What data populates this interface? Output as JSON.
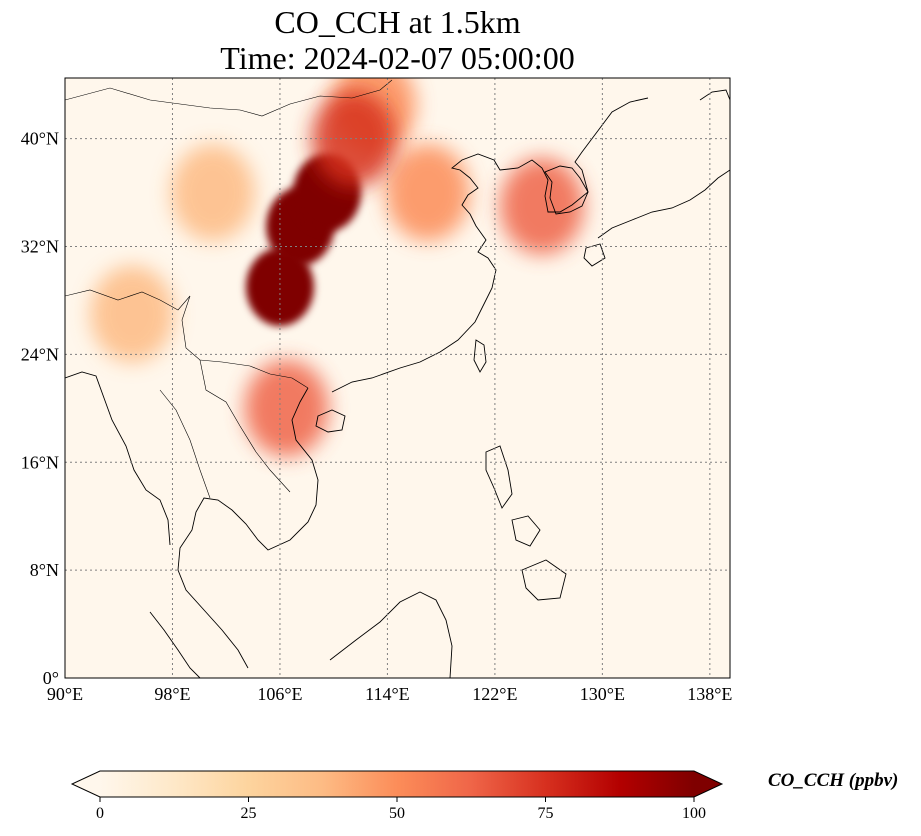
{
  "figure": {
    "title_line1": "CO_CCH at 1.5km",
    "title_line2": "Time: 2024-02-07 05:00:00"
  },
  "map": {
    "projection": "PlateCarree",
    "lon_range": [
      90,
      139.5
    ],
    "lat_range": [
      0,
      44.5
    ],
    "gridlines": "dotted gray",
    "lon_ticks": [
      {
        "value": 90,
        "label": "90°E"
      },
      {
        "value": 98,
        "label": "98°E"
      },
      {
        "value": 106,
        "label": "106°E"
      },
      {
        "value": 114,
        "label": "114°E"
      },
      {
        "value": 122,
        "label": "122°E"
      },
      {
        "value": 130,
        "label": "130°E"
      },
      {
        "value": 138,
        "label": "138°E"
      }
    ],
    "lat_ticks": [
      {
        "value": 0,
        "label": "0°"
      },
      {
        "value": 8,
        "label": "8°N"
      },
      {
        "value": 16,
        "label": "16°N"
      },
      {
        "value": 24,
        "label": "24°N"
      },
      {
        "value": 32,
        "label": "32°N"
      },
      {
        "value": 40,
        "label": "40°N"
      }
    ],
    "field_features": [
      {
        "lon": 107.5,
        "lat": 33.5,
        "value": 100
      },
      {
        "lon": 106.0,
        "lat": 29.0,
        "value": 100
      },
      {
        "lon": 109.5,
        "lat": 36.0,
        "value": 100
      },
      {
        "lon": 113.0,
        "lat": 42.5,
        "value": 55
      },
      {
        "lon": 117.0,
        "lat": 36.0,
        "value": 55
      },
      {
        "lon": 125.5,
        "lat": 35.0,
        "value": 60
      },
      {
        "lon": 106.5,
        "lat": 20.0,
        "value": 65
      },
      {
        "lon": 95.0,
        "lat": 27.0,
        "value": 35
      },
      {
        "lon": 101.0,
        "lat": 36.0,
        "value": 35
      },
      {
        "lon": 111.5,
        "lat": 40.0,
        "value": 80
      }
    ],
    "background_value": 3
  },
  "colorbar": {
    "label": "CO_CCH (ppbv)",
    "cmap": "OrRd",
    "range": [
      0,
      100
    ],
    "extend": "both",
    "ticks": [
      {
        "value": 0,
        "label": "0"
      },
      {
        "value": 25,
        "label": "25"
      },
      {
        "value": 50,
        "label": "50"
      },
      {
        "value": 75,
        "label": "75"
      },
      {
        "value": 100,
        "label": "100"
      }
    ],
    "colors": [
      "#fff7ec",
      "#fee8c8",
      "#fdd49e",
      "#fdbb84",
      "#fc8d59",
      "#ef6548",
      "#d7301f",
      "#b30000",
      "#7f0000"
    ]
  }
}
